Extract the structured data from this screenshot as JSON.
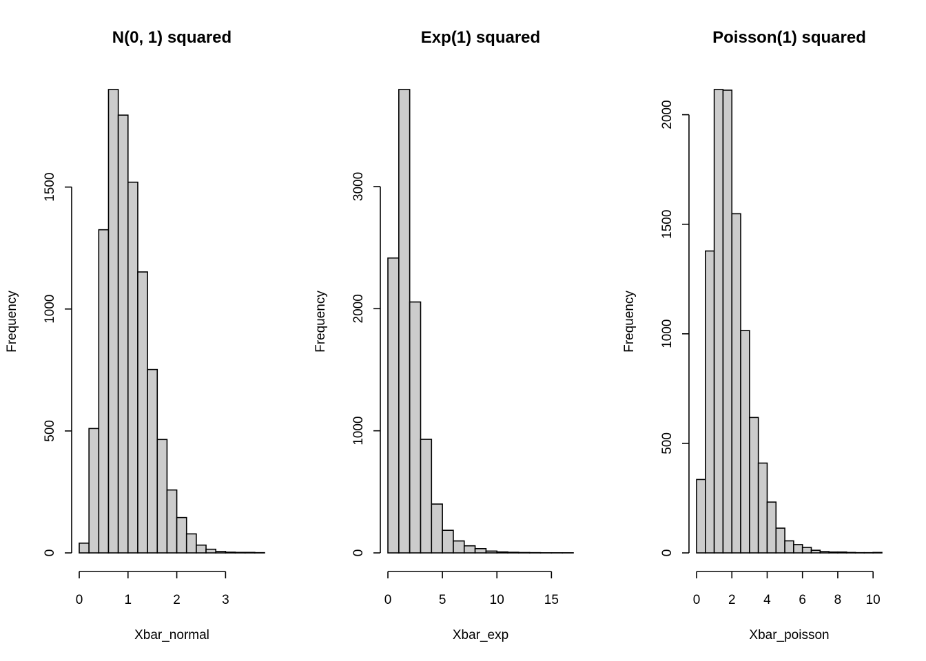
{
  "chart_data": [
    {
      "type": "bar",
      "title": "N(0, 1) squared",
      "xlabel": "Xbar_normal",
      "ylabel": "Frequency",
      "bin_width": 0.2,
      "bin_start": 0,
      "values": [
        40,
        510,
        1325,
        1900,
        1795,
        1520,
        1152,
        752,
        465,
        258,
        145,
        78,
        32,
        15,
        6,
        3,
        2,
        2,
        1
      ],
      "xlim": [
        0,
        3.8
      ],
      "ylim": [
        0,
        1900
      ],
      "xticks": [
        0,
        1,
        2,
        3
      ],
      "xtick_labels": [
        "0",
        "1",
        "2",
        "3"
      ],
      "yticks": [
        0,
        500,
        1000,
        1500
      ],
      "ytick_labels": [
        "0",
        "500",
        "1000",
        "1500"
      ]
    },
    {
      "type": "bar",
      "title": "Exp(1) squared",
      "xlabel": "Xbar_exp",
      "ylabel": "Frequency",
      "bin_width": 1,
      "bin_start": 0,
      "values": [
        2415,
        3795,
        2055,
        930,
        400,
        185,
        98,
        58,
        35,
        15,
        8,
        5,
        3,
        2,
        1,
        1,
        1
      ],
      "xlim": [
        0,
        17
      ],
      "ylim": [
        0,
        3795
      ],
      "xticks": [
        0,
        5,
        10,
        15
      ],
      "xtick_labels": [
        "0",
        "5",
        "10",
        "15"
      ],
      "yticks": [
        0,
        1000,
        2000,
        3000
      ],
      "ytick_labels": [
        "0",
        "1000",
        "2000",
        "3000"
      ]
    },
    {
      "type": "bar",
      "title": "Poisson(1) squared",
      "xlabel": "Xbar_poisson",
      "ylabel": "Frequency",
      "bin_width": 0.5,
      "bin_start": 0,
      "values": [
        335,
        1378,
        2115,
        2112,
        1548,
        1015,
        618,
        410,
        232,
        113,
        55,
        38,
        25,
        12,
        6,
        4,
        4,
        2,
        1,
        1,
        2
      ],
      "xlim": [
        0,
        10.5
      ],
      "ylim": [
        0,
        2115
      ],
      "xticks": [
        0,
        2,
        4,
        6,
        8,
        10
      ],
      "xtick_labels": [
        "0",
        "2",
        "4",
        "6",
        "8",
        "10"
      ],
      "yticks": [
        0,
        500,
        1000,
        1500,
        2000
      ],
      "ytick_labels": [
        "0",
        "500",
        "1000",
        "1500",
        "2000"
      ]
    }
  ]
}
